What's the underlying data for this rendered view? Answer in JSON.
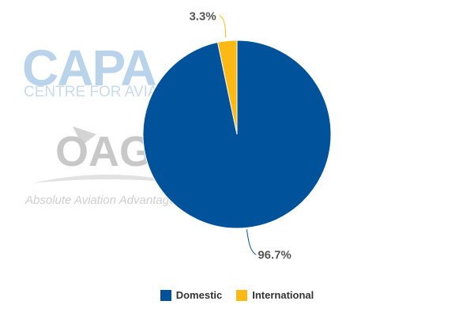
{
  "watermarks": {
    "capa": "CAPA",
    "capa_sub": "CENTRE FOR AVIATION",
    "oag": "OAG",
    "oag_sub": "Absolute Aviation Advantage"
  },
  "chart_data": {
    "type": "pie",
    "title": "",
    "legend_position": "bottom",
    "series": [
      {
        "name": "Domestic",
        "value": 96.7,
        "label": "96.7%",
        "color": "#00529b"
      },
      {
        "name": "International",
        "value": 3.3,
        "label": "3.3%",
        "color": "#fdb913"
      }
    ]
  }
}
